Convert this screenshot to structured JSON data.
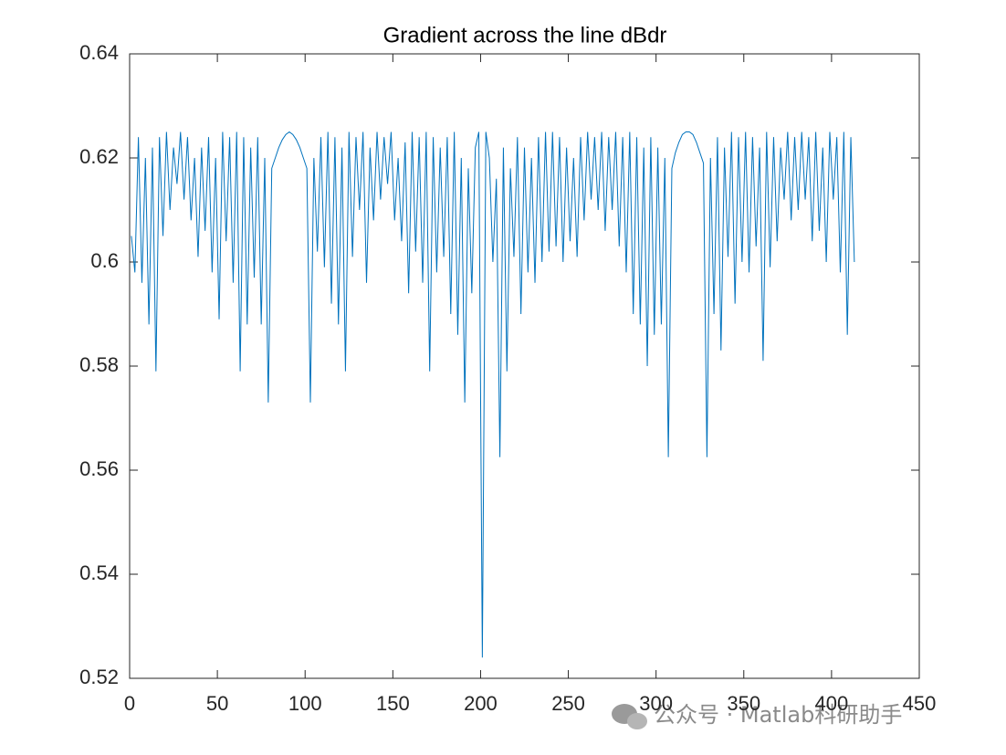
{
  "chart_data": {
    "type": "line",
    "title": "Gradient across the line dBdr",
    "x": [
      1,
      3,
      5,
      7,
      9,
      11,
      13,
      15,
      17,
      19,
      21,
      23,
      25,
      27,
      29,
      31,
      33,
      35,
      37,
      39,
      41,
      43,
      45,
      47,
      49,
      51,
      53,
      55,
      57,
      59,
      61,
      63,
      65,
      67,
      69,
      71,
      73,
      75,
      77,
      79,
      81,
      83,
      85,
      87,
      89,
      91,
      93,
      95,
      97,
      99,
      101,
      103,
      105,
      107,
      109,
      111,
      113,
      115,
      117,
      119,
      121,
      123,
      125,
      127,
      129,
      131,
      133,
      135,
      137,
      139,
      141,
      143,
      145,
      147,
      149,
      151,
      153,
      155,
      157,
      159,
      161,
      163,
      165,
      167,
      169,
      171,
      173,
      175,
      177,
      179,
      181,
      183,
      185,
      187,
      189,
      191,
      193,
      195,
      197,
      199,
      201,
      203,
      205,
      207,
      209,
      211,
      213,
      215,
      217,
      219,
      221,
      223,
      225,
      227,
      229,
      231,
      233,
      235,
      237,
      239,
      241,
      243,
      245,
      247,
      249,
      251,
      253,
      255,
      257,
      259,
      261,
      263,
      265,
      267,
      269,
      271,
      273,
      275,
      277,
      279,
      281,
      283,
      285,
      287,
      289,
      291,
      293,
      295,
      297,
      299,
      301,
      303,
      305,
      307,
      309,
      311,
      313,
      315,
      317,
      319,
      321,
      323,
      325,
      327,
      329,
      331,
      333,
      335,
      337,
      339,
      341,
      343,
      345,
      347,
      349,
      351,
      353,
      355,
      357,
      359,
      361,
      363,
      365,
      367,
      369,
      371,
      373,
      375,
      377,
      379,
      381,
      383,
      385,
      387,
      389,
      391,
      393,
      395,
      397,
      399,
      401,
      403,
      405,
      407,
      409,
      411,
      413
    ],
    "series": [
      {
        "color": "#0072bd",
        "values": [
          0.605,
          0.598,
          0.624,
          0.596,
          0.62,
          0.588,
          0.622,
          0.579,
          0.624,
          0.605,
          0.625,
          0.61,
          0.622,
          0.615,
          0.625,
          0.612,
          0.624,
          0.608,
          0.62,
          0.601,
          0.622,
          0.606,
          0.624,
          0.598,
          0.62,
          0.589,
          0.625,
          0.604,
          0.624,
          0.596,
          0.625,
          0.579,
          0.624,
          0.588,
          0.622,
          0.597,
          0.624,
          0.588,
          0.62,
          0.573,
          0.618,
          0.62,
          0.622,
          0.6235,
          0.6245,
          0.625,
          0.6245,
          0.6235,
          0.622,
          0.62,
          0.618,
          0.573,
          0.62,
          0.602,
          0.624,
          0.599,
          0.625,
          0.592,
          0.624,
          0.588,
          0.622,
          0.579,
          0.625,
          0.601,
          0.624,
          0.61,
          0.625,
          0.596,
          0.622,
          0.608,
          0.625,
          0.612,
          0.624,
          0.615,
          0.625,
          0.608,
          0.62,
          0.604,
          0.623,
          0.594,
          0.625,
          0.602,
          0.624,
          0.596,
          0.625,
          0.579,
          0.624,
          0.598,
          0.622,
          0.601,
          0.624,
          0.59,
          0.625,
          0.586,
          0.62,
          0.573,
          0.618,
          0.594,
          0.622,
          0.625,
          0.524,
          0.625,
          0.62,
          0.6,
          0.616,
          0.5625,
          0.622,
          0.579,
          0.618,
          0.601,
          0.624,
          0.59,
          0.622,
          0.598,
          0.62,
          0.596,
          0.624,
          0.6,
          0.625,
          0.602,
          0.625,
          0.603,
          0.624,
          0.6,
          0.622,
          0.604,
          0.62,
          0.601,
          0.624,
          0.608,
          0.625,
          0.612,
          0.624,
          0.61,
          0.625,
          0.606,
          0.624,
          0.61,
          0.625,
          0.603,
          0.624,
          0.598,
          0.625,
          0.59,
          0.624,
          0.588,
          0.622,
          0.58,
          0.624,
          0.586,
          0.622,
          0.588,
          0.62,
          0.5625,
          0.618,
          0.621,
          0.623,
          0.6245,
          0.625,
          0.625,
          0.6245,
          0.623,
          0.621,
          0.619,
          0.5625,
          0.62,
          0.59,
          0.624,
          0.583,
          0.622,
          0.601,
          0.625,
          0.592,
          0.624,
          0.6,
          0.625,
          0.598,
          0.624,
          0.603,
          0.622,
          0.581,
          0.625,
          0.599,
          0.624,
          0.604,
          0.622,
          0.612,
          0.625,
          0.608,
          0.624,
          0.61,
          0.625,
          0.612,
          0.624,
          0.604,
          0.625,
          0.606,
          0.622,
          0.6,
          0.625,
          0.612,
          0.624,
          0.598,
          0.625,
          0.586,
          0.624,
          0.6
        ]
      }
    ],
    "xlim": [
      0,
      450
    ],
    "xticks": [
      0,
      50,
      100,
      150,
      200,
      250,
      300,
      350,
      400,
      450
    ],
    "ylim": [
      0.52,
      0.64
    ],
    "yticks": [
      0.52,
      0.54,
      0.56,
      0.58,
      0.6,
      0.62,
      0.64
    ],
    "grid": false
  },
  "watermark": "公众号 · Matlab科研助手"
}
